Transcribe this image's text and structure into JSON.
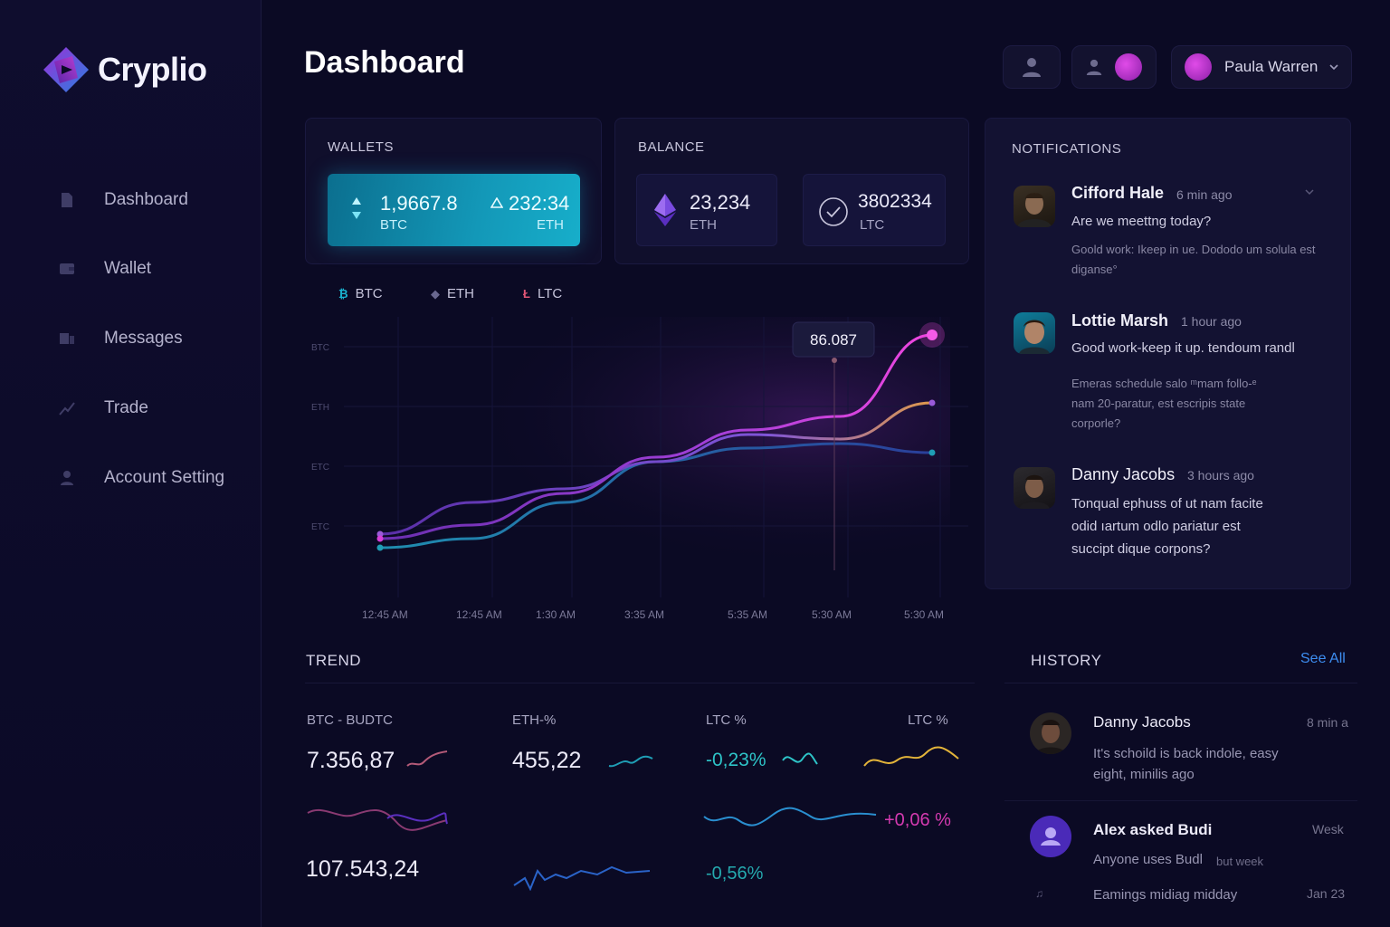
{
  "brand": {
    "name": "Cryplio"
  },
  "sidebar": {
    "items": [
      {
        "label": "Dashboard",
        "icon": "document-icon"
      },
      {
        "label": "Wallet",
        "icon": "wallet-icon"
      },
      {
        "label": "Messages",
        "icon": "messages-icon"
      },
      {
        "label": "Trade",
        "icon": "trade-icon"
      },
      {
        "label": "Account Setting",
        "icon": "user-icon"
      }
    ]
  },
  "header": {
    "title": "Dashboard",
    "user_name": "Paula Warren"
  },
  "wallets": {
    "title": "WALLETS",
    "btc_value": "1,9667.8",
    "btc_unit": "BTC",
    "eth_value": "232:34",
    "eth_unit": "ETH"
  },
  "balance": {
    "title": "BALANCE",
    "eth_value": "23,234",
    "eth_unit": "ETH",
    "ltc_value": "3802334",
    "ltc_unit": "LTC"
  },
  "chart_legend": [
    "BTC",
    "ETH",
    "LTC"
  ],
  "chart_data": {
    "type": "line",
    "x": [
      "12:45 AM",
      "12:45 AM",
      "1:30 AM",
      "3:35 AM",
      "5:35 AM",
      "5:30 AM",
      "5:30 AM"
    ],
    "y_tick_labels": [
      "BTC",
      "ETH",
      "ETC",
      "ETC"
    ],
    "tooltip_value": "86.087",
    "grid": true,
    "series": [
      {
        "name": "BTC",
        "color": "#d63fd8",
        "values": [
          10,
          16,
          30,
          46,
          58,
          64,
          100
        ]
      },
      {
        "name": "ETH",
        "color": "#9a5ad8",
        "values": [
          12,
          26,
          32,
          44,
          56,
          54,
          70
        ]
      },
      {
        "name": "LTC",
        "color": "#1f9eb5",
        "values": [
          6,
          10,
          26,
          44,
          50,
          52,
          48
        ]
      }
    ]
  },
  "notifications": {
    "title": "NOTIFICATIONS",
    "items": [
      {
        "name": "Cifford Hale",
        "time": "6 min ago",
        "message": "Are we meettng today?",
        "sub": "Goold work: Ikeep in ue. Dododo um solula est diganse°"
      },
      {
        "name": "Lottie Marsh",
        "time": "1 hour ago",
        "message": "Good work-keep it up. tendoum randl",
        "sub": "Emeras schedule salo ᵐmam follo-ᵉ nam 20-paratur, est escripis state corporle?"
      },
      {
        "name": "Danny Jacobs",
        "time": "3 hours ago",
        "message": "Tonqual ephuss of ut nam facite odid ıartum odlo pariatur est succipt dique corpons?",
        "sub": ""
      }
    ]
  },
  "trend": {
    "title": "TREND",
    "col1_label": "BTC - BUDTC",
    "col1_value1": "7.356,87",
    "col1_value2": "107.543,24",
    "col2_label": "ETH-%",
    "col2_value": "455,22",
    "col3_label": "LTC %",
    "col3_value1": "-0,23%",
    "col3_value2": "-0,56%",
    "col4_label": "LTC %",
    "col4_value": "+0,06 %"
  },
  "history": {
    "title": "HISTORY",
    "see_all": "See All",
    "items": [
      {
        "name": "Danny Jacobs",
        "time": "8 min a",
        "message": "It's schoild is back indole, easy eight, minilis ago"
      },
      {
        "name": "Alex asked Budi",
        "time": "Wesk",
        "message": "Anyone uses Budl",
        "extra": "but week"
      },
      {
        "name": "",
        "time": "Jan 23",
        "message": "Eamings midiag midday"
      }
    ]
  },
  "colors": {
    "accent_magenta": "#d63fd8",
    "accent_cyan": "#17aeca",
    "link_blue": "#3d8df0",
    "positive": "#d43ab0",
    "negative": "#2ec4c8"
  }
}
